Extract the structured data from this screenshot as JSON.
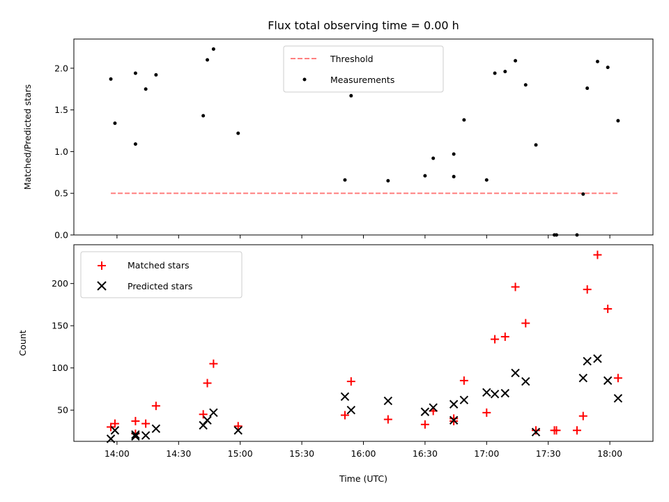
{
  "chart_data": [
    {
      "type": "scatter",
      "title": "Flux total observing time = 0.00 h",
      "xlabel": "",
      "ylabel": "Matched/Predicted stars",
      "ylim": [
        0,
        2.35
      ],
      "yticks": [
        "0.0",
        "0.5",
        "1.0",
        "1.5",
        "2.0"
      ],
      "yticks_values": [
        0,
        0.5,
        1.0,
        1.5,
        2.0
      ],
      "legend_position": "upper-center",
      "threshold": {
        "name": "Threshold",
        "value": 0.5,
        "x_start": "13:57",
        "x_end": "18:04",
        "color": "#ff7f7f"
      },
      "series": [
        {
          "name": "Measurements",
          "color": "#000000",
          "x": [
            "13:57",
            "13:59",
            "14:09",
            "14:09",
            "14:14",
            "14:19",
            "14:42",
            "14:44",
            "14:47",
            "14:59",
            "15:51",
            "15:54",
            "16:12",
            "16:30",
            "16:34",
            "16:44",
            "16:44",
            "16:49",
            "17:00",
            "17:04",
            "17:09",
            "17:14",
            "17:19",
            "17:24",
            "17:33",
            "17:34",
            "17:44",
            "17:47",
            "17:49",
            "17:54",
            "17:59",
            "18:04"
          ],
          "y": [
            1.87,
            1.34,
            1.09,
            1.94,
            1.75,
            1.92,
            1.43,
            2.1,
            2.23,
            1.22,
            0.66,
            1.67,
            0.65,
            0.71,
            0.92,
            0.7,
            0.97,
            1.38,
            0.66,
            1.94,
            1.96,
            2.09,
            1.8,
            1.08,
            0.0,
            0.0,
            0.0,
            0.49,
            1.76,
            2.08,
            2.01,
            1.37
          ]
        }
      ]
    },
    {
      "type": "scatter",
      "title": "",
      "xlabel": "Time (UTC)",
      "ylabel": "Count",
      "ylim": [
        13,
        246
      ],
      "yticks": [
        "50",
        "100",
        "150",
        "200"
      ],
      "yticks_values": [
        50,
        100,
        150,
        200
      ],
      "xlim": [
        "13:39",
        "18:21"
      ],
      "xticks": [
        "14:00",
        "14:30",
        "15:00",
        "15:30",
        "16:00",
        "16:30",
        "17:00",
        "17:30",
        "18:00"
      ],
      "legend_position": "upper-left",
      "series": [
        {
          "name": "Matched stars",
          "marker": "plus",
          "color": "#ff0000",
          "x": [
            "13:57",
            "13:59",
            "14:09",
            "14:09",
            "14:14",
            "14:19",
            "14:42",
            "14:44",
            "14:47",
            "14:59",
            "15:51",
            "15:54",
            "16:12",
            "16:30",
            "16:34",
            "16:44",
            "16:44",
            "16:49",
            "17:00",
            "17:04",
            "17:09",
            "17:14",
            "17:19",
            "17:24",
            "17:33",
            "17:34",
            "17:44",
            "17:47",
            "17:49",
            "17:54",
            "17:59",
            "18:04"
          ],
          "y": [
            30,
            34,
            37,
            22,
            34,
            55,
            45,
            82,
            105,
            31,
            44,
            84,
            39,
            33,
            49,
            40,
            37,
            85,
            47,
            134,
            137,
            196,
            153,
            26,
            26,
            26,
            26,
            43,
            193,
            234,
            170,
            88
          ]
        },
        {
          "name": "Predicted stars",
          "marker": "x",
          "color": "#000000",
          "x": [
            "13:57",
            "13:59",
            "14:09",
            "14:09",
            "14:14",
            "14:19",
            "14:42",
            "14:44",
            "14:47",
            "14:59",
            "15:51",
            "15:54",
            "16:12",
            "16:30",
            "16:34",
            "16:44",
            "16:44",
            "16:49",
            "17:00",
            "17:04",
            "17:09",
            "17:14",
            "17:19",
            "17:24",
            "17:47",
            "17:49",
            "17:54",
            "17:59",
            "18:04"
          ],
          "y": [
            16,
            26,
            19,
            21,
            20,
            28,
            32,
            38,
            47,
            26,
            66,
            50,
            61,
            48,
            53,
            57,
            38,
            62,
            71,
            69,
            70,
            94,
            84,
            24,
            88,
            108,
            111,
            85,
            64
          ]
        }
      ]
    }
  ]
}
